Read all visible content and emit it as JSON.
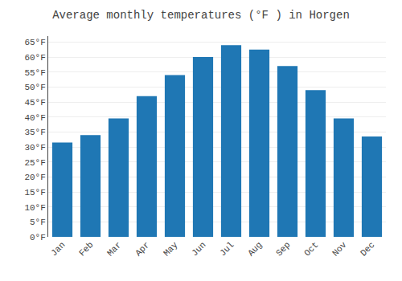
{
  "chart_data": {
    "type": "bar",
    "title": "Average monthly temperatures (°F ) in Horgen",
    "categories": [
      "Jan",
      "Feb",
      "Mar",
      "Apr",
      "May",
      "Jun",
      "Jul",
      "Aug",
      "Sep",
      "Oct",
      "Nov",
      "Dec"
    ],
    "values": [
      31.5,
      34.0,
      39.5,
      47.0,
      54.0,
      60.0,
      64.0,
      62.5,
      57.0,
      49.0,
      39.5,
      33.5
    ],
    "ylim": [
      0,
      67
    ],
    "yticks": [
      {
        "value": 0,
        "label": "0°F"
      },
      {
        "value": 5,
        "label": "5°F"
      },
      {
        "value": 10,
        "label": "10°F"
      },
      {
        "value": 15,
        "label": "15°F"
      },
      {
        "value": 20,
        "label": "20°F"
      },
      {
        "value": 25,
        "label": "25°F"
      },
      {
        "value": 30,
        "label": "30°F"
      },
      {
        "value": 35,
        "label": "35°F"
      },
      {
        "value": 40,
        "label": "40°F"
      },
      {
        "value": 45,
        "label": "45°F"
      },
      {
        "value": 50,
        "label": "50°F"
      },
      {
        "value": 55,
        "label": "55°F"
      },
      {
        "value": 60,
        "label": "60°F"
      },
      {
        "value": 65,
        "label": "65°F"
      }
    ],
    "grid": true
  }
}
